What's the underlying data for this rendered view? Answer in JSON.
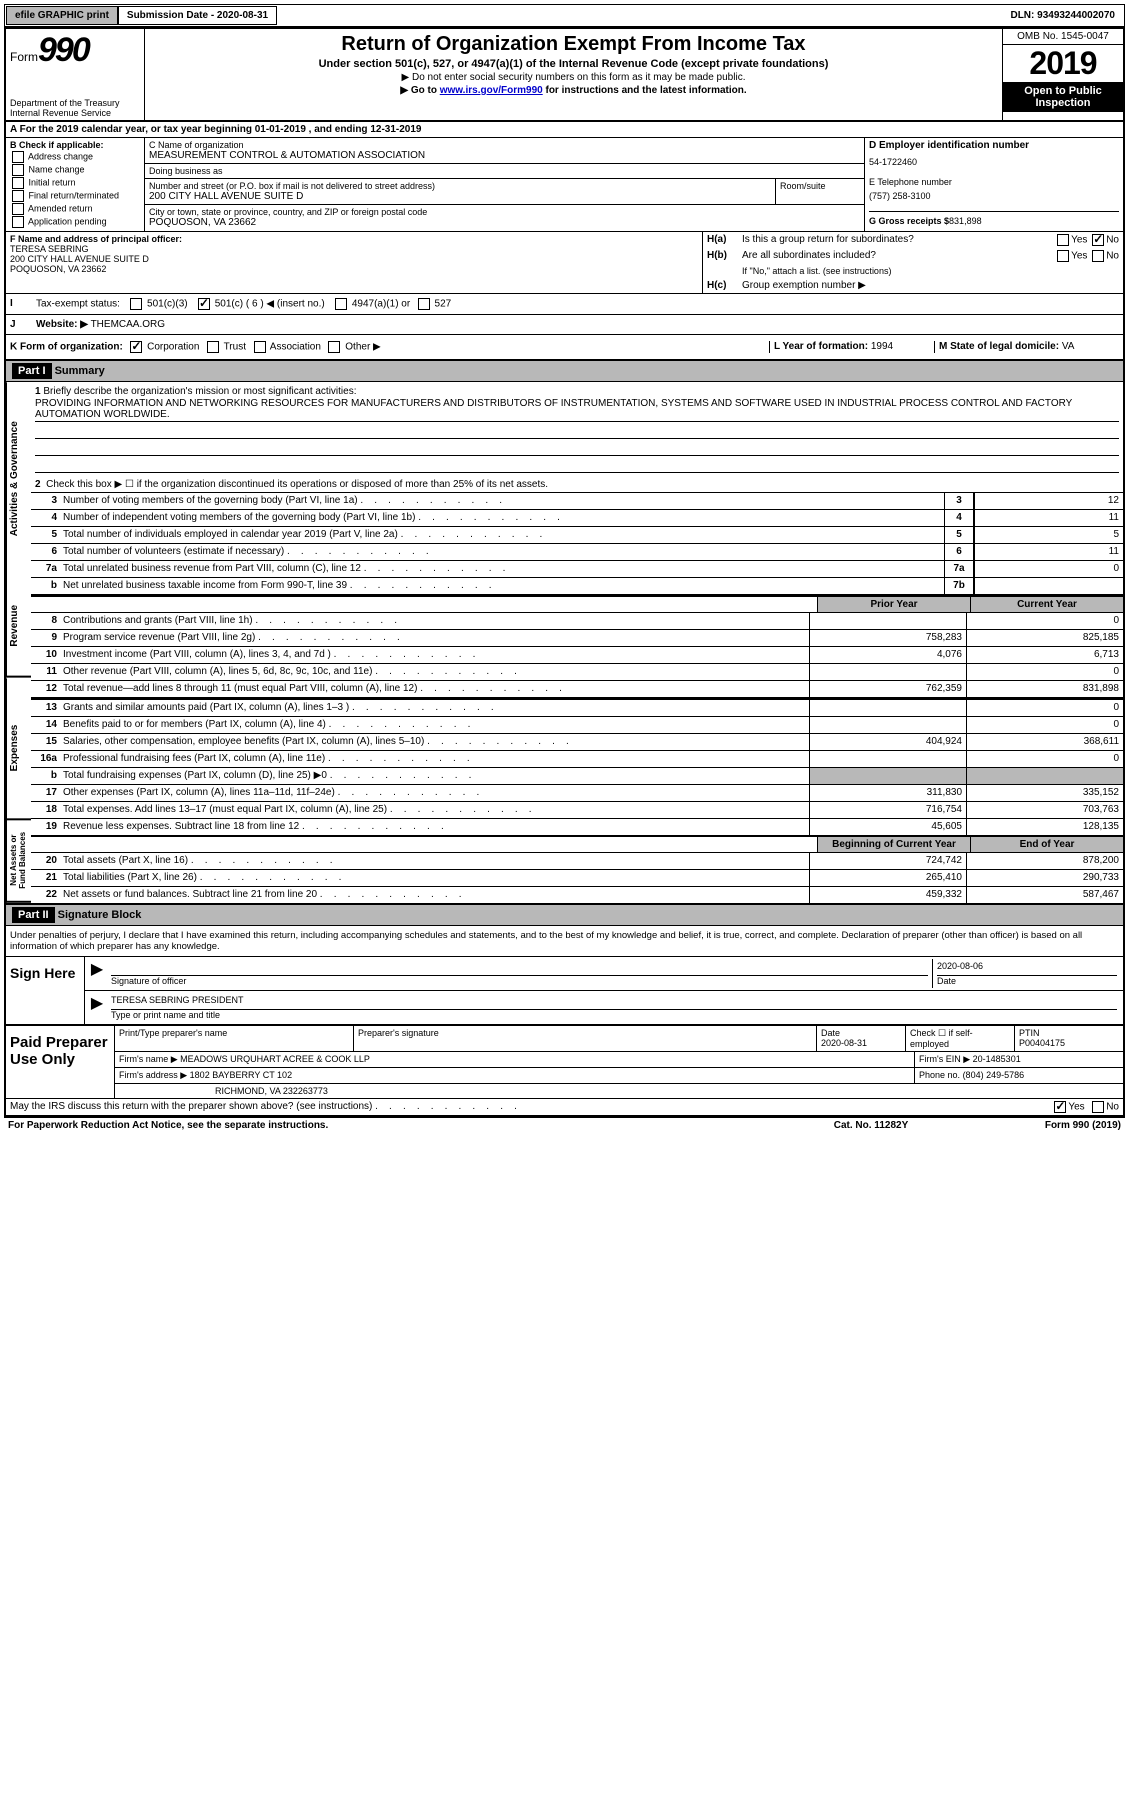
{
  "top_bar": {
    "efile": "efile GRAPHIC print",
    "submission_label": "Submission Date - 2020-08-31",
    "dln": "DLN: 93493244002070"
  },
  "header": {
    "form_label": "Form",
    "form_number": "990",
    "dept": "Department of the Treasury",
    "irs": "Internal Revenue Service",
    "title": "Return of Organization Exempt From Income Tax",
    "subtitle": "Under section 501(c), 527, or 4947(a)(1) of the Internal Revenue Code (except private foundations)",
    "note1": "▶ Do not enter social security numbers on this form as it may be made public.",
    "note2_pre": "▶ Go to ",
    "note2_link": "www.irs.gov/Form990",
    "note2_post": " for instructions and the latest information.",
    "omb": "OMB No. 1545-0047",
    "year": "2019",
    "open": "Open to Public Inspection"
  },
  "line_a": "A For the 2019 calendar year, or tax year beginning 01-01-2019    , and ending 12-31-2019",
  "section_b": {
    "header": "B Check if applicable:",
    "items": [
      "Address change",
      "Name change",
      "Initial return",
      "Final return/terminated",
      "Amended return",
      "Application pending"
    ]
  },
  "section_c": {
    "name_label": "C Name of organization",
    "name": "MEASUREMENT CONTROL & AUTOMATION ASSOCIATION",
    "dba_label": "Doing business as",
    "dba": "",
    "street_label": "Number and street (or P.O. box if mail is not delivered to street address)",
    "street": "200 CITY HALL AVENUE SUITE D",
    "room_label": "Room/suite",
    "city_label": "City or town, state or province, country, and ZIP or foreign postal code",
    "city": "POQUOSON, VA  23662"
  },
  "section_d": {
    "ein_label": "D Employer identification number",
    "ein": "54-1722460",
    "phone_label": "E Telephone number",
    "phone": "(757) 258-3100",
    "gross_label": "G Gross receipts $",
    "gross": "831,898"
  },
  "section_f": {
    "label": "F  Name and address of principal officer:",
    "name": "TERESA SEBRING",
    "street": "200 CITY HALL AVENUE SUITE D",
    "city": "POQUOSON, VA  23662"
  },
  "section_h": {
    "ha_label": "H(a)",
    "ha_text": "Is this a group return for subordinates?",
    "hb_label": "H(b)",
    "hb_text": "Are all subordinates included?",
    "hb_note": "If \"No,\" attach a list. (see instructions)",
    "hc_label": "H(c)",
    "hc_text": "Group exemption number ▶"
  },
  "tax_exempt": {
    "i_label": "I",
    "label": "Tax-exempt status:",
    "opt1": "501(c)(3)",
    "opt2_pre": "501(c) (",
    "opt2_val": "6",
    "opt2_post": ") ◀ (insert no.)",
    "opt3": "4947(a)(1) or",
    "opt4": "527"
  },
  "website": {
    "j_label": "J",
    "label": "Website: ▶",
    "value": "THEMCAA.ORG"
  },
  "k_org": {
    "label": "K Form of organization:",
    "opts": [
      "Corporation",
      "Trust",
      "Association",
      "Other ▶"
    ],
    "l_label": "L Year of formation:",
    "l_value": "1994",
    "m_label": "M State of legal domicile:",
    "m_value": "VA"
  },
  "part1": {
    "header": "Part I",
    "title": "Summary"
  },
  "activities": {
    "vert": "Activities & Governance",
    "line1_label": "1",
    "line1_text": "Briefly describe the organization's mission or most significant activities:",
    "line1_desc": "PROVIDING INFORMATION AND NETWORKING RESOURCES FOR MANUFACTURERS AND DISTRIBUTORS OF INSTRUMENTATION, SYSTEMS AND SOFTWARE USED IN INDUSTRIAL PROCESS CONTROL AND FACTORY AUTOMATION WORLDWIDE.",
    "line2_text": "Check this box ▶ ☐  if the organization discontinued its operations or disposed of more than 25% of its net assets.",
    "rows": [
      {
        "n": "3",
        "text": "Number of voting members of the governing body (Part VI, line 1a)",
        "box": "3",
        "val": "12"
      },
      {
        "n": "4",
        "text": "Number of independent voting members of the governing body (Part VI, line 1b)",
        "box": "4",
        "val": "11"
      },
      {
        "n": "5",
        "text": "Total number of individuals employed in calendar year 2019 (Part V, line 2a)",
        "box": "5",
        "val": "5"
      },
      {
        "n": "6",
        "text": "Total number of volunteers (estimate if necessary)",
        "box": "6",
        "val": "11"
      },
      {
        "n": "7a",
        "text": "Total unrelated business revenue from Part VIII, column (C), line 12",
        "box": "7a",
        "val": "0"
      },
      {
        "n": "b",
        "text": "Net unrelated business taxable income from Form 990-T, line 39",
        "box": "7b",
        "val": ""
      }
    ]
  },
  "revenue": {
    "vert": "Revenue",
    "prior_hdr": "Prior Year",
    "curr_hdr": "Current Year",
    "rows": [
      {
        "n": "8",
        "text": "Contributions and grants (Part VIII, line 1h)",
        "prior": "",
        "curr": "0"
      },
      {
        "n": "9",
        "text": "Program service revenue (Part VIII, line 2g)",
        "prior": "758,283",
        "curr": "825,185"
      },
      {
        "n": "10",
        "text": "Investment income (Part VIII, column (A), lines 3, 4, and 7d )",
        "prior": "4,076",
        "curr": "6,713"
      },
      {
        "n": "11",
        "text": "Other revenue (Part VIII, column (A), lines 5, 6d, 8c, 9c, 10c, and 11e)",
        "prior": "",
        "curr": "0"
      },
      {
        "n": "12",
        "text": "Total revenue—add lines 8 through 11 (must equal Part VIII, column (A), line 12)",
        "prior": "762,359",
        "curr": "831,898"
      }
    ]
  },
  "expenses": {
    "vert": "Expenses",
    "rows": [
      {
        "n": "13",
        "text": "Grants and similar amounts paid (Part IX, column (A), lines 1–3 )",
        "prior": "",
        "curr": "0"
      },
      {
        "n": "14",
        "text": "Benefits paid to or for members (Part IX, column (A), line 4)",
        "prior": "",
        "curr": "0"
      },
      {
        "n": "15",
        "text": "Salaries, other compensation, employee benefits (Part IX, column (A), lines 5–10)",
        "prior": "404,924",
        "curr": "368,611"
      },
      {
        "n": "16a",
        "text": "Professional fundraising fees (Part IX, column (A), line 11e)",
        "prior": "",
        "curr": "0"
      },
      {
        "n": "b",
        "text": "Total fundraising expenses (Part IX, column (D), line 25) ▶0",
        "prior": "SHADE",
        "curr": "SHADE"
      },
      {
        "n": "17",
        "text": "Other expenses (Part IX, column (A), lines 11a–11d, 11f–24e)",
        "prior": "311,830",
        "curr": "335,152"
      },
      {
        "n": "18",
        "text": "Total expenses. Add lines 13–17 (must equal Part IX, column (A), line 25)",
        "prior": "716,754",
        "curr": "703,763"
      },
      {
        "n": "19",
        "text": "Revenue less expenses. Subtract line 18 from line 12",
        "prior": "45,605",
        "curr": "128,135"
      }
    ]
  },
  "netassets": {
    "vert": "Net Assets or Fund Balances",
    "begin_hdr": "Beginning of Current Year",
    "end_hdr": "End of Year",
    "rows": [
      {
        "n": "20",
        "text": "Total assets (Part X, line 16)",
        "prior": "724,742",
        "curr": "878,200"
      },
      {
        "n": "21",
        "text": "Total liabilities (Part X, line 26)",
        "prior": "265,410",
        "curr": "290,733"
      },
      {
        "n": "22",
        "text": "Net assets or fund balances. Subtract line 21 from line 20",
        "prior": "459,332",
        "curr": "587,467"
      }
    ]
  },
  "part2": {
    "header": "Part II",
    "title": "Signature Block"
  },
  "penalty": "Under penalties of perjury, I declare that I have examined this return, including accompanying schedules and statements, and to the best of my knowledge and belief, it is true, correct, and complete. Declaration of preparer (other than officer) is based on all information of which preparer has any knowledge.",
  "sign": {
    "label": "Sign Here",
    "sig_label": "Signature of officer",
    "date": "2020-08-06",
    "date_label": "Date",
    "name": "TERESA SEBRING  PRESIDENT",
    "name_label": "Type or print name and title"
  },
  "preparer": {
    "label": "Paid Preparer Use Only",
    "print_label": "Print/Type preparer's name",
    "sig_label": "Preparer's signature",
    "date_label": "Date",
    "date": "2020-08-31",
    "check_label": "Check ☐ if self-employed",
    "ptin_label": "PTIN",
    "ptin": "P00404175",
    "firm_name_label": "Firm's name    ▶",
    "firm_name": "MEADOWS URQUHART ACREE & COOK LLP",
    "firm_ein_label": "Firm's EIN ▶",
    "firm_ein": "20-1485301",
    "firm_addr_label": "Firm's address ▶",
    "firm_addr1": "1802 BAYBERRY CT 102",
    "firm_addr2": "RICHMOND, VA  232263773",
    "phone_label": "Phone no.",
    "phone": "(804) 249-5786"
  },
  "irs_discuss": "May the IRS discuss this return with the preparer shown above? (see instructions)",
  "footer": {
    "left": "For Paperwork Reduction Act Notice, see the separate instructions.",
    "mid": "Cat. No. 11282Y",
    "right": "Form 990 (2019)"
  }
}
